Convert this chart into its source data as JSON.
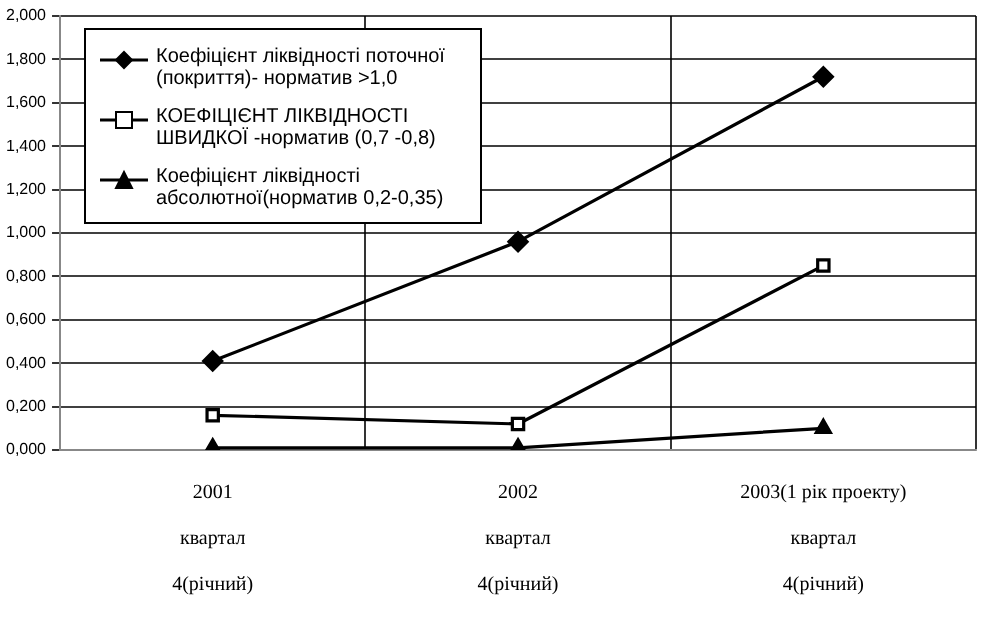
{
  "chart_data": {
    "type": "line",
    "categories": [
      "2001\nквартал\n4(річний)",
      "2002\nквартал\n4(річний)",
      "2003(1 рік проекту)\nквартал\n4(річний)"
    ],
    "series": [
      {
        "name": "Коефіцієнт ліквідності поточної (покриття)- норматив >1,0",
        "color": "#000000",
        "marker": "diamond",
        "values": [
          0.41,
          0.96,
          1.72
        ]
      },
      {
        "name": "КОЕФІЦІЄНТ ЛІКВІДНОСТІ ШВИДКОЇ -норматив (0,7 -0,8)",
        "color": "#000000",
        "marker": "square",
        "values": [
          0.16,
          0.12,
          0.85
        ]
      },
      {
        "name": "Коефіцієнт ліквідності абсолютної(норматив 0,2-0,35)",
        "color": "#000000",
        "marker": "triangle",
        "values": [
          0.01,
          0.01,
          0.1
        ]
      }
    ],
    "ylim": [
      0,
      2
    ],
    "yticks": [
      {
        "value": 0,
        "label": "0,000"
      },
      {
        "value": 0.2,
        "label": "0,200"
      },
      {
        "value": 0.4,
        "label": "0,400"
      },
      {
        "value": 0.6,
        "label": "0,600"
      },
      {
        "value": 0.8,
        "label": "0,800"
      },
      {
        "value": 1,
        "label": "1,000"
      },
      {
        "value": 1.2,
        "label": "1,200"
      },
      {
        "value": 1.4,
        "label": "1,400"
      },
      {
        "value": 1.6,
        "label": "1,600"
      },
      {
        "value": 1.8,
        "label": "1,800"
      },
      {
        "value": 2,
        "label": "2,000"
      }
    ],
    "grid": true,
    "legend": "top left"
  }
}
